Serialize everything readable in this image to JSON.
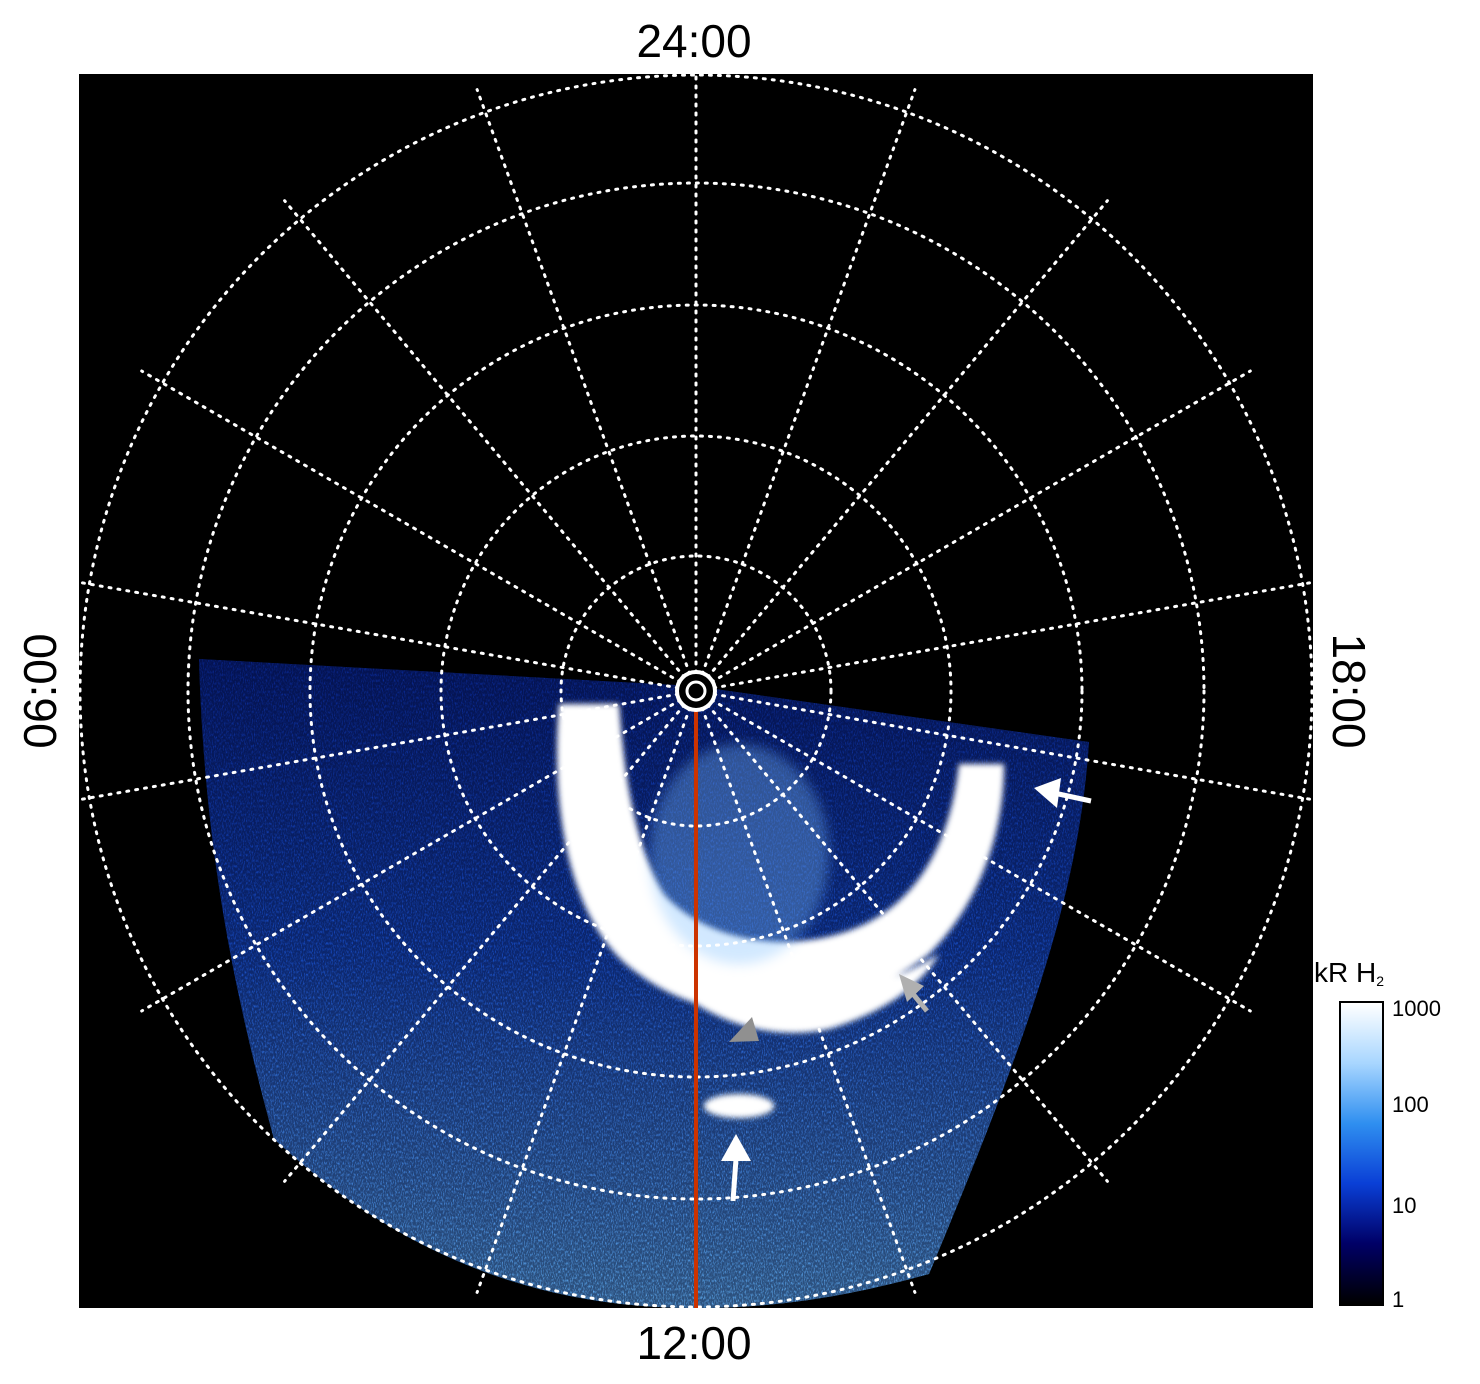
{
  "local_time_labels": {
    "top": "24:00",
    "bottom": "12:00",
    "left": "06:00",
    "right": "18:00"
  },
  "colorbar": {
    "title_main": "kR H",
    "title_sub": "2",
    "scale": "log",
    "range": [
      1,
      1000
    ],
    "ticks": [
      "1000",
      "100",
      "10",
      "1"
    ],
    "stops": [
      "#000000",
      "#000066",
      "#0a3fd6",
      "#2f8ff0",
      "#a8d6ff",
      "#ffffff"
    ]
  },
  "colors": {
    "grid": "#ffffff",
    "meridian_line": "#cc3300",
    "arrow_white": "#ffffff",
    "arrow_gray": "#b0b0b0"
  }
}
